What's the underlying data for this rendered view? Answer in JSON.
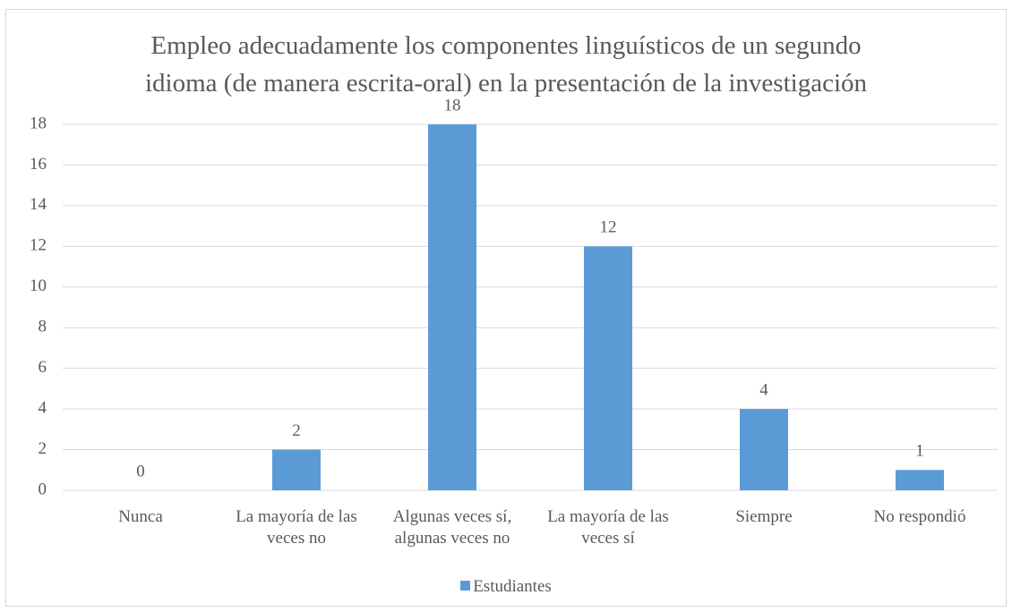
{
  "chart_data": {
    "type": "bar",
    "title": "Empleo adecuadamente los componentes linguísticos de un segundo\nidioma (de manera escrita-oral) en la presentación de la investigación",
    "categories": [
      "Nunca",
      "La mayoría de las veces no",
      "Algunas veces sí, algunas veces no",
      "La mayoría de las veces sí",
      "Siempre",
      "No respondió"
    ],
    "series": [
      {
        "name": "Estudiantes",
        "color": "#5b9bd5",
        "values": [
          0,
          2,
          18,
          12,
          4,
          1
        ]
      }
    ],
    "ylim": [
      0,
      18
    ],
    "yticks": [
      0,
      2,
      4,
      6,
      8,
      10,
      12,
      14,
      16,
      18
    ],
    "grid": true,
    "legend": "bottom"
  }
}
